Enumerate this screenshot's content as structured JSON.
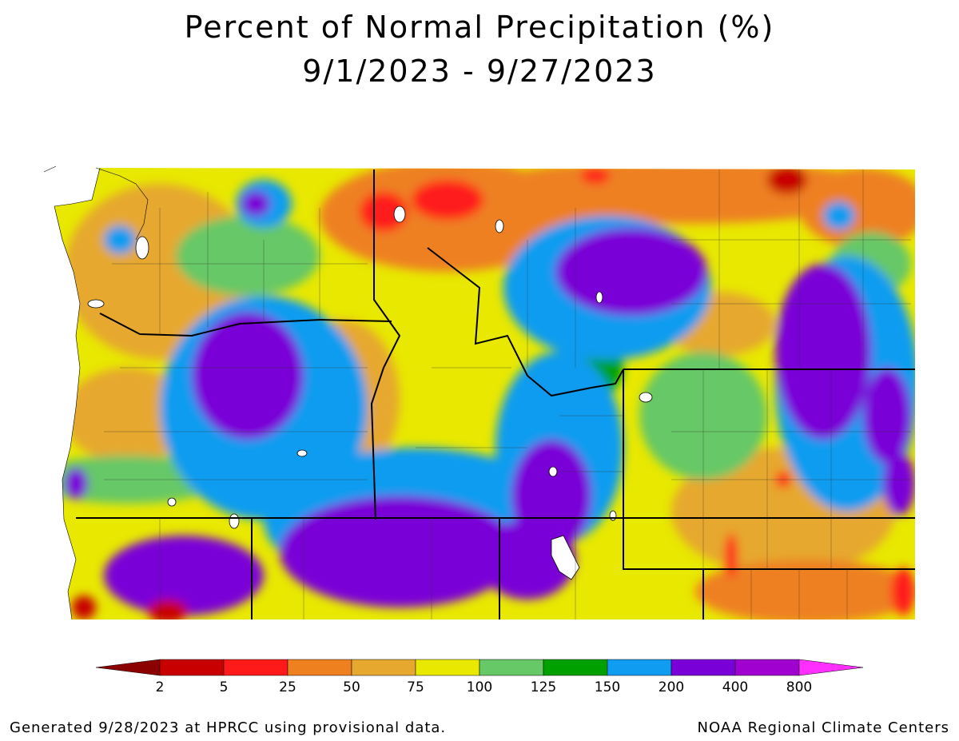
{
  "title": {
    "line1": "Percent of Normal Precipitation (%)",
    "line2": "9/1/2023 - 9/27/2023"
  },
  "legend": {
    "ticks": [
      "2",
      "5",
      "25",
      "50",
      "75",
      "100",
      "125",
      "150",
      "200",
      "400",
      "800"
    ],
    "colors": [
      "#8b0000",
      "#c80000",
      "#ff1a1a",
      "#ee8020",
      "#e6a82e",
      "#e8e800",
      "#66c866",
      "#00a000",
      "#109cf0",
      "#7a00d8",
      "#a000d0",
      "#ff30ff"
    ]
  },
  "footer": {
    "left": "Generated 9/28/2023 at HPRCC using provisional data.",
    "right": "NOAA Regional Climate Centers"
  }
}
